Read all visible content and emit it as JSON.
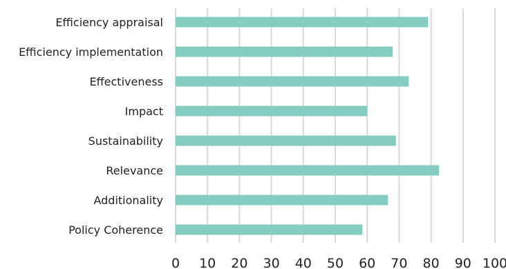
{
  "chart_data": {
    "type": "bar",
    "orientation": "horizontal",
    "title": "",
    "xlabel": "",
    "ylabel": "",
    "categories": [
      "Efficiency appraisal",
      "Efficiency implementation",
      "Effectiveness",
      "Impact",
      "Sustainability",
      "Relevance",
      "Additionality",
      "Policy Coherence"
    ],
    "values": [
      79,
      68,
      73,
      60,
      69,
      82.5,
      66.5,
      58.5
    ],
    "xlim": [
      0,
      100
    ],
    "xticks": [
      "0",
      "10",
      "20",
      "30",
      "40",
      "50",
      "60",
      "70",
      "80",
      "90",
      "100"
    ],
    "grid": "vertical",
    "legend": "none",
    "colors": {
      "bar": "#86cdc1",
      "grid": "#d9d9d9",
      "text": "#1f1f1f"
    }
  }
}
